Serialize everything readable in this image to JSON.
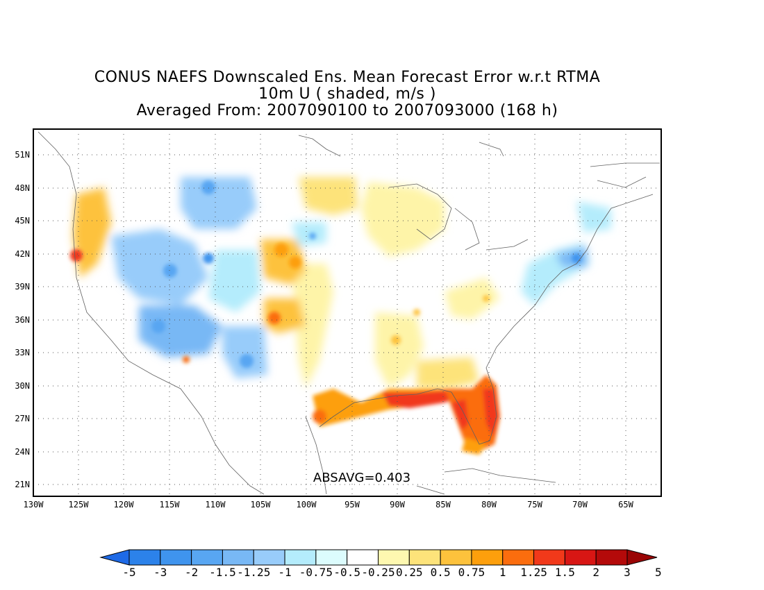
{
  "title": {
    "line1": "CONUS NAEFS Downscaled Ens. Mean Forecast Error w.r.t RTMA",
    "line2": "10m U ( shaded, m/s )",
    "line3": "Averaged From: 2007090100 to 2007093000 (168 h)"
  },
  "annotation": "ABSAVG=0.403",
  "lat_labels": [
    "51N",
    "48N",
    "45N",
    "42N",
    "39N",
    "36N",
    "33N",
    "30N",
    "27N",
    "24N",
    "21N"
  ],
  "lon_labels": [
    "130W",
    "125W",
    "120W",
    "115W",
    "110W",
    "105W",
    "100W",
    "95W",
    "90W",
    "85W",
    "80W",
    "75W",
    "70W",
    "65W"
  ],
  "colorbar": {
    "labels": [
      "-5",
      "-3",
      "-2",
      "-1.5",
      "-1.25",
      "-1",
      "-0.75",
      "-0.5",
      "-0.25",
      "0.25",
      "0.5",
      "0.75",
      "1",
      "1.25",
      "1.5",
      "2",
      "3",
      "5"
    ],
    "colors": [
      "#1e6ae6",
      "#2c82ea",
      "#3f94ee",
      "#58a6f2",
      "#78b8f5",
      "#98ccfa",
      "#b4ecfc",
      "#dcfcfd",
      "#ffffff",
      "#fef8b0",
      "#fde37a",
      "#fdc23c",
      "#fd9f0c",
      "#fb6d0e",
      "#f1391a",
      "#d81614",
      "#b40a0a",
      "#9a0505"
    ]
  },
  "grid": {
    "style": "dotted",
    "lat_range": [
      20,
      52.5
    ],
    "lon_range": [
      -130,
      -60
    ]
  },
  "map_shading": {
    "region": "CONUS",
    "west_interior": "negative (blue)",
    "gulf_coast_florida": "strong positive (orange-red)",
    "central_east": "near zero to weak positive"
  }
}
